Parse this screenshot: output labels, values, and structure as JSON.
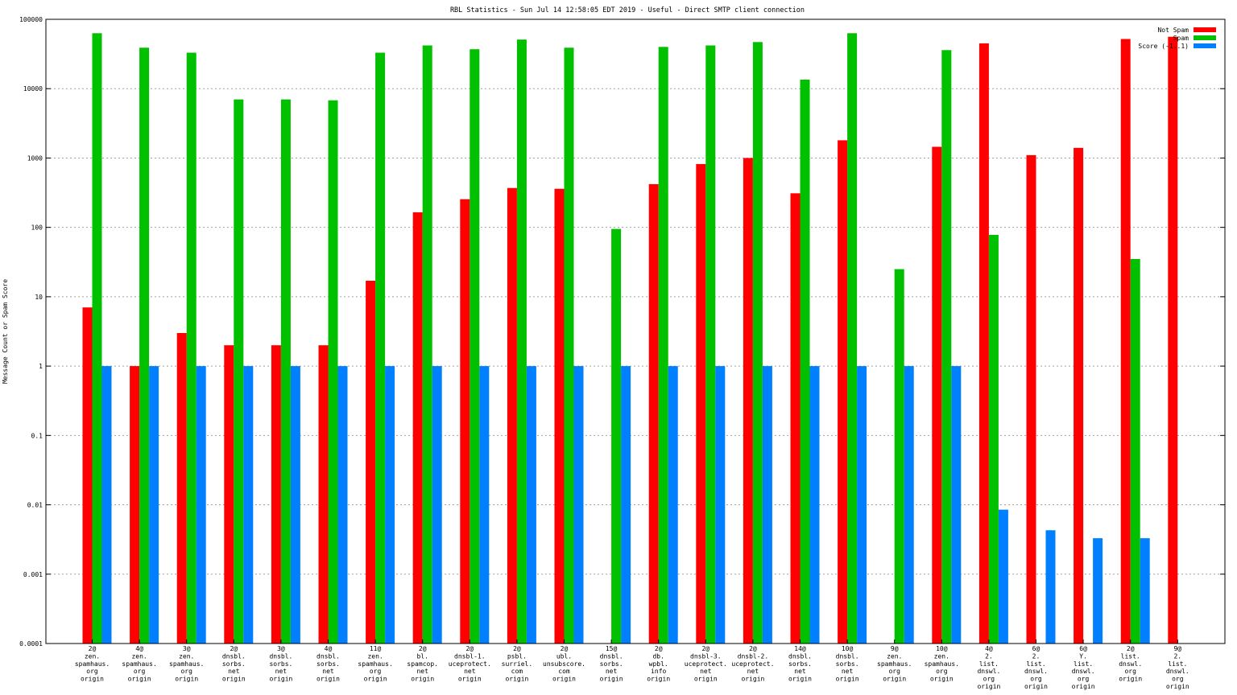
{
  "chart_data": {
    "type": "bar",
    "title": "RBL Statistics - Sun Jul 14 12:58:05 EDT 2019 - Useful - Direct SMTP client connection",
    "xlabel": "",
    "ylabel": "Message Count or Spam Score",
    "yscale": "log",
    "ylim": [
      0.0001,
      100000
    ],
    "grid": true,
    "legend_position": "top-right",
    "yticks": [
      "0.0001",
      "0.001",
      "0.01",
      "0.1",
      "1",
      "10",
      "100",
      "1000",
      "10000",
      "100000"
    ],
    "categories": [
      [
        "2@",
        "zen.",
        "spamhaus.",
        "org",
        "origin"
      ],
      [
        "4@",
        "zen.",
        "spamhaus.",
        "org",
        "origin"
      ],
      [
        "3@",
        "zen.",
        "spamhaus.",
        "org",
        "origin"
      ],
      [
        "2@",
        "dnsbl.",
        "sorbs.",
        "net",
        "origin"
      ],
      [
        "3@",
        "dnsbl.",
        "sorbs.",
        "net",
        "origin"
      ],
      [
        "4@",
        "dnsbl.",
        "sorbs.",
        "net",
        "origin"
      ],
      [
        "11@",
        "zen.",
        "spamhaus.",
        "org",
        "origin"
      ],
      [
        "2@",
        "bl.",
        "spamcop.",
        "net",
        "origin"
      ],
      [
        "2@",
        "dnsbl-1.",
        "uceprotect.",
        "net",
        "origin"
      ],
      [
        "2@",
        "psbl.",
        "surriel.",
        "com",
        "origin"
      ],
      [
        "2@",
        "ubl.",
        "unsubscore.",
        "com",
        "origin"
      ],
      [
        "15@",
        "dnsbl.",
        "sorbs.",
        "net",
        "origin"
      ],
      [
        "2@",
        "db.",
        "wpbl.",
        "info",
        "origin"
      ],
      [
        "2@",
        "dnsbl-3.",
        "uceprotect.",
        "net",
        "origin"
      ],
      [
        "2@",
        "dnsbl-2.",
        "uceprotect.",
        "net",
        "origin"
      ],
      [
        "14@",
        "dnsbl.",
        "sorbs.",
        "net",
        "origin"
      ],
      [
        "10@",
        "dnsbl.",
        "sorbs.",
        "net",
        "origin"
      ],
      [
        "9@",
        "zen.",
        "spamhaus.",
        "org",
        "origin"
      ],
      [
        "10@",
        "zen.",
        "spamhaus.",
        "org",
        "origin"
      ],
      [
        "4@",
        "2.",
        "list.",
        "dnswl.",
        "org",
        "origin"
      ],
      [
        "6@",
        "2.",
        "list.",
        "dnswl.",
        "org",
        "origin"
      ],
      [
        "6@",
        "Y.",
        "list.",
        "dnswl.",
        "org",
        "origin"
      ],
      [
        "2@",
        "list.",
        "dnswl.",
        "org",
        "origin"
      ],
      [
        "9@",
        "2.",
        "list.",
        "dnswl.",
        "org",
        "origin"
      ]
    ],
    "series": [
      {
        "name": "Not Spam",
        "color": "#ff0000",
        "values": [
          7,
          1,
          3,
          2,
          2,
          2,
          17,
          165,
          255,
          370,
          360,
          null,
          420,
          820,
          1000,
          310,
          1800,
          null,
          1450,
          45000,
          1100,
          1400,
          52000,
          56000
        ]
      },
      {
        "name": "Spam",
        "color": "#00c000",
        "values": [
          63000,
          39000,
          33000,
          7000,
          7000,
          6800,
          33000,
          42000,
          37000,
          51000,
          39000,
          95,
          40000,
          42000,
          47000,
          13500,
          63000,
          25,
          36000,
          78,
          null,
          null,
          35,
          null
        ]
      },
      {
        "name": "Score (-1..1)",
        "color": "#0080ff",
        "values": [
          1,
          1,
          1,
          1,
          1,
          1,
          1,
          1,
          1,
          1,
          1,
          1,
          1,
          1,
          1,
          1,
          1,
          1,
          1,
          0.0085,
          0.0043,
          0.0033,
          0.0033,
          null
        ]
      }
    ]
  }
}
